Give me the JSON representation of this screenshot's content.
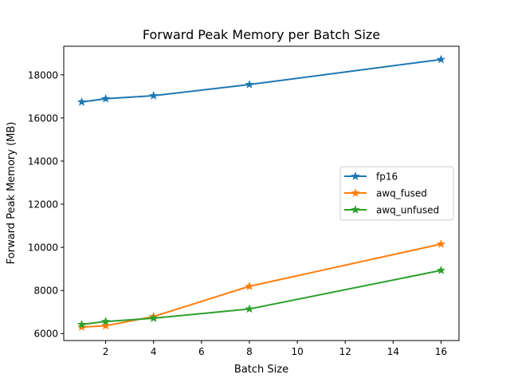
{
  "chart_data": {
    "type": "line",
    "title": "Forward Peak Memory per Batch Size",
    "xlabel": "Batch Size",
    "ylabel": "Forward Peak Memory (MB)",
    "xlim": [
      0.25,
      16.75
    ],
    "ylim": [
      5676,
      19324
    ],
    "xticks": [
      2,
      4,
      6,
      8,
      10,
      12,
      14,
      16
    ],
    "yticks": [
      6000,
      8000,
      10000,
      12000,
      14000,
      16000,
      18000
    ],
    "grid": false,
    "legend_position": "center-right",
    "marker": "star",
    "x": [
      1,
      2,
      4,
      8,
      16
    ],
    "series": [
      {
        "name": "fp16",
        "color": "#1f77b4",
        "values": [
          16740,
          16890,
          17030,
          17550,
          18710
        ]
      },
      {
        "name": "awq_fused",
        "color": "#ff7f0e",
        "values": [
          6300,
          6360,
          6790,
          8190,
          10150
        ]
      },
      {
        "name": "awq_unfused",
        "color": "#2ca02c",
        "values": [
          6420,
          6560,
          6710,
          7140,
          8930
        ]
      }
    ]
  }
}
